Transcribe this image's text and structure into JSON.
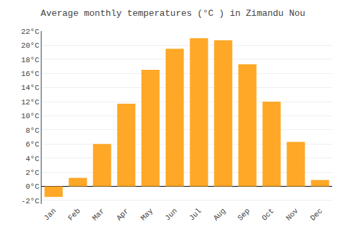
{
  "chart_data": {
    "type": "bar",
    "title": "Average monthly temperatures (°C ) in Zimandu Nou",
    "categories": [
      "Jan",
      "Feb",
      "Mar",
      "Apr",
      "May",
      "Jun",
      "Jul",
      "Aug",
      "Sep",
      "Oct",
      "Nov",
      "Dec"
    ],
    "values": [
      -1.5,
      1.2,
      6.0,
      11.7,
      16.5,
      19.5,
      21.0,
      20.7,
      17.3,
      12.0,
      6.3,
      0.9
    ],
    "color": "#FFA726",
    "ylim": [
      -2.5,
      22
    ],
    "yticks": [
      {
        "value": -2,
        "label": "-2°C"
      },
      {
        "value": 0,
        "label": "0°C"
      },
      {
        "value": 2,
        "label": "2°C"
      },
      {
        "value": 4,
        "label": "4°C"
      },
      {
        "value": 6,
        "label": "6°C"
      },
      {
        "value": 8,
        "label": "8°C"
      },
      {
        "value": 10,
        "label": "10°C"
      },
      {
        "value": 12,
        "label": "12°C"
      },
      {
        "value": 14,
        "label": "14°C"
      },
      {
        "value": 16,
        "label": "16°C"
      },
      {
        "value": 18,
        "label": "18°C"
      },
      {
        "value": 20,
        "label": "20°C"
      },
      {
        "value": 22,
        "label": "22°C"
      }
    ],
    "grid": true
  }
}
